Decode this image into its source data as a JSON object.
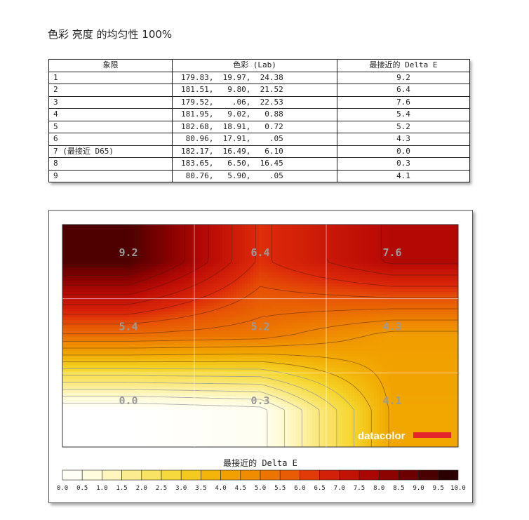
{
  "page_title": "色彩 亮度 的均匀性 100%",
  "table": {
    "headers": [
      "象限",
      "色彩 (Lab)",
      "最接近的 Delta E"
    ],
    "rows": [
      {
        "quadrant": "1",
        "lab": "179.83,  19.97,  24.38",
        "delta_e": "9.2"
      },
      {
        "quadrant": "2",
        "lab": "181.51,   9.80,  21.52",
        "delta_e": "6.4"
      },
      {
        "quadrant": "3",
        "lab": "179.52,    .06,  22.53",
        "delta_e": "7.6"
      },
      {
        "quadrant": "4",
        "lab": "181.95,   9.02,   0.88",
        "delta_e": "5.4"
      },
      {
        "quadrant": "5",
        "lab": "182.68,  18.91,   0.72",
        "delta_e": "5.2"
      },
      {
        "quadrant": "6",
        "lab": " 80.96,  17.91,    .05",
        "delta_e": "4.3"
      },
      {
        "quadrant": "7 (最接近 D65)",
        "lab": "182.17,  16.49,   6.10",
        "delta_e": "0.0"
      },
      {
        "quadrant": "8",
        "lab": "183.65,   6.50,  16.45",
        "delta_e": "0.3"
      },
      {
        "quadrant": "9",
        "lab": " 80.76,   5.90,    .05",
        "delta_e": "4.1"
      }
    ]
  },
  "chart_data": {
    "type": "heatmap",
    "grid": {
      "rows": 3,
      "cols": 3
    },
    "values": [
      [
        9.2,
        6.4,
        7.6
      ],
      [
        5.4,
        5.2,
        4.3
      ],
      [
        0.0,
        0.3,
        4.1
      ]
    ],
    "value_labels": [
      [
        "9.2",
        "6.4",
        "7.6"
      ],
      [
        "5.4",
        "5.2",
        "4.3"
      ],
      [
        "0.0",
        "0.3",
        "4.1"
      ]
    ],
    "colorbar": {
      "label": "最接近的 Delta E",
      "range": [
        0,
        10
      ],
      "ticks": [
        "0.0",
        "0.5",
        "1.0",
        "1.5",
        "2.0",
        "2.5",
        "3.0",
        "3.5",
        "4.0",
        "4.5",
        "5.0",
        "5.5",
        "6.0",
        "6.5",
        "7.0",
        "7.5",
        "8.0",
        "8.5",
        "9.0",
        "9.5",
        "10.0"
      ]
    },
    "contours": true,
    "gridlines": true
  },
  "brand": {
    "logo_text": "datacolor",
    "logo_bar_color": "#e2262b"
  },
  "colors": {
    "low": "#ffffff",
    "mid": "#f2a900",
    "high": "#2a0000"
  }
}
